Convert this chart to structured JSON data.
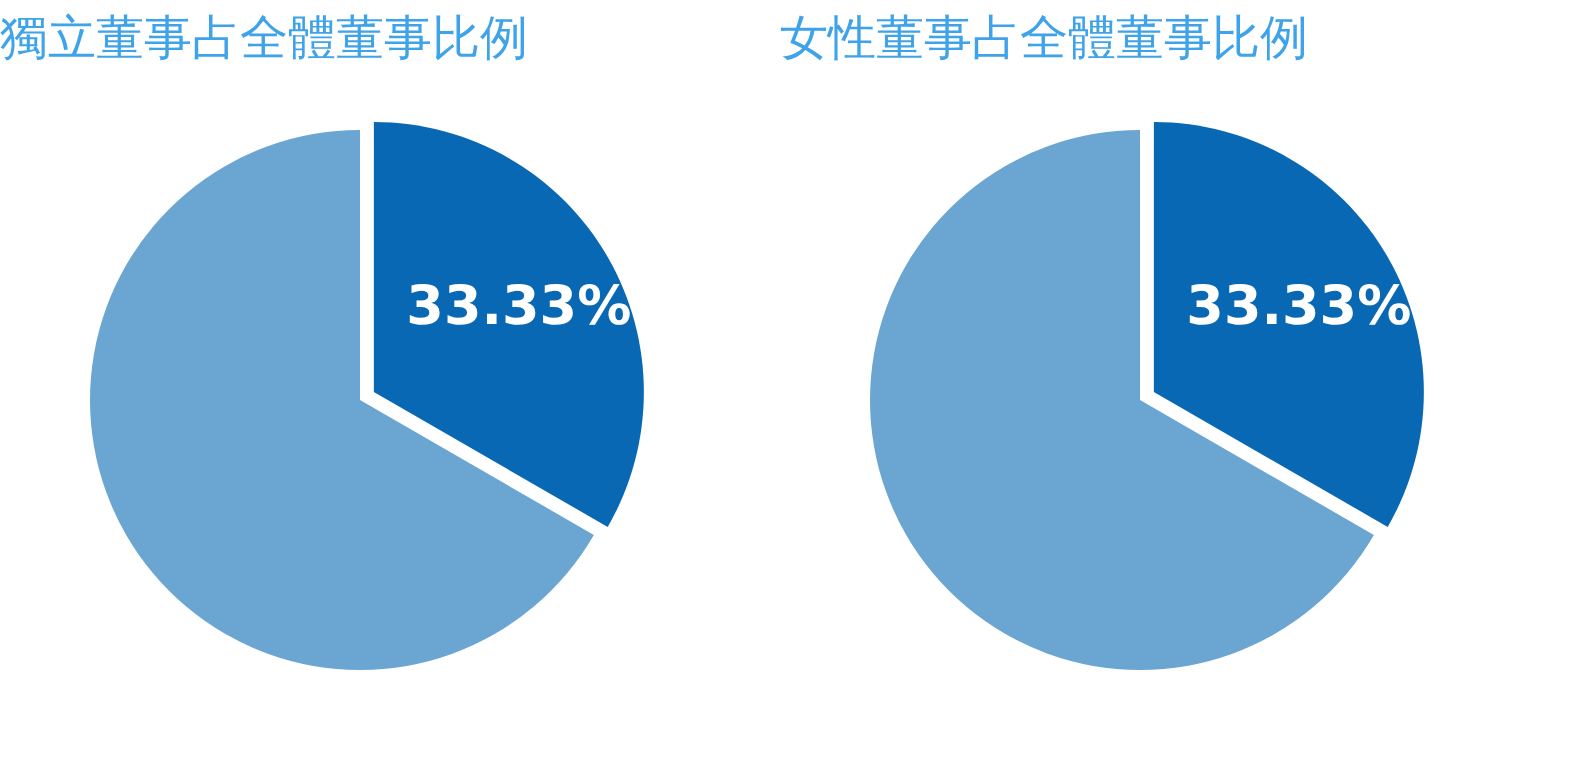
{
  "chart_data": [
    {
      "type": "pie",
      "title": "獨立董事占全體董事比例",
      "categories": [
        null,
        null
      ],
      "values": [
        33.33,
        66.67
      ],
      "colors": [
        "#0868b3",
        "#6aa6d1"
      ],
      "value_labels": [
        "33.33%",
        null
      ]
    },
    {
      "type": "pie",
      "title": "女性董事占全體董事比例",
      "categories": [
        null,
        null
      ],
      "values": [
        33.33,
        66.67
      ],
      "colors": [
        "#0868b3",
        "#6aa6d1"
      ],
      "value_labels": [
        "33.33%",
        null
      ]
    }
  ]
}
